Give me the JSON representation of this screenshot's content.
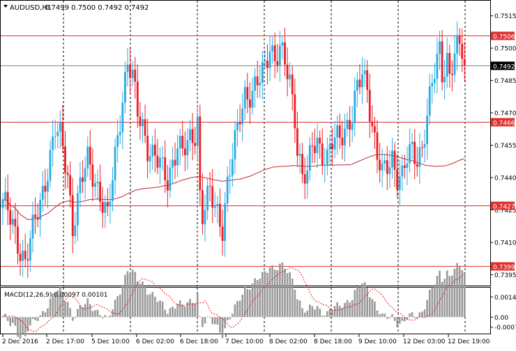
{
  "chart_data": [
    {
      "type": "candlestick",
      "title": "AUDUSD,H1",
      "ohlc_header": "0.7499 0.7500 0.7492 0.7492",
      "symbol": "AUDUSD",
      "timeframe": "H1",
      "ylim": [
        0.739,
        0.7522
      ],
      "y_ticks": [
        "0.7515",
        "0.7500",
        "0.7485",
        "0.7470",
        "0.7455",
        "0.7440",
        "0.7425",
        "0.7410",
        "0.7395"
      ],
      "x_tick_labels": [
        "2 Dec 2016",
        "2 Dec 17:00",
        "5 Dec 10:00",
        "6 Dec 02:00",
        "6 Dec 18:00",
        "7 Dec 10:00",
        "8 Dec 02:00",
        "8 Dec 18:00",
        "9 Dec 10:00",
        "12 Dec 03:00",
        "12 Dec 19:00"
      ],
      "current_price": "0.7492",
      "horizontal_levels": [
        {
          "label": "0.7506",
          "value": 0.7506
        },
        {
          "label": "0.7466",
          "value": 0.7466
        },
        {
          "label": "0.7427",
          "value": 0.7427
        },
        {
          "label": "0.7399",
          "value": 0.7399
        }
      ],
      "colors": {
        "bull": "#29abe2",
        "bear": "#ed1c24",
        "ma": "#c0282d",
        "level": "#e03030",
        "grid": "#000000"
      },
      "waypoints": [
        [
          0,
          0.743
        ],
        [
          3,
          0.742
        ],
        [
          6,
          0.741
        ],
        [
          9,
          0.7402
        ],
        [
          12,
          0.7415
        ],
        [
          15,
          0.7428
        ],
        [
          18,
          0.7445
        ],
        [
          21,
          0.7462
        ],
        [
          23,
          0.7458
        ],
        [
          26,
          0.7442
        ],
        [
          28,
          0.7418
        ],
        [
          31,
          0.7435
        ],
        [
          34,
          0.7448
        ],
        [
          37,
          0.744
        ],
        [
          40,
          0.7428
        ],
        [
          42,
          0.742
        ],
        [
          44,
          0.744
        ],
        [
          46,
          0.746
        ],
        [
          48,
          0.7478
        ],
        [
          50,
          0.7493
        ],
        [
          52,
          0.7485
        ],
        [
          54,
          0.747
        ],
        [
          56,
          0.7465
        ],
        [
          58,
          0.7455
        ],
        [
          60,
          0.745
        ],
        [
          63,
          0.7445
        ],
        [
          66,
          0.744
        ],
        [
          68,
          0.7448
        ],
        [
          70,
          0.7455
        ],
        [
          72,
          0.745
        ],
        [
          75,
          0.7458
        ],
        [
          77,
          0.7462
        ],
        [
          78,
          0.7468
        ],
        [
          79,
          0.7432
        ],
        [
          80,
          0.7422
        ],
        [
          83,
          0.7432
        ],
        [
          86,
          0.7425
        ],
        [
          88,
          0.7418
        ],
        [
          90,
          0.7436
        ],
        [
          93,
          0.7455
        ],
        [
          95,
          0.747
        ],
        [
          97,
          0.748
        ],
        [
          100,
          0.7478
        ],
        [
          103,
          0.7485
        ],
        [
          105,
          0.7492
        ],
        [
          107,
          0.7503
        ],
        [
          109,
          0.7495
        ],
        [
          111,
          0.7498
        ],
        [
          113,
          0.7492
        ],
        [
          115,
          0.7485
        ],
        [
          117,
          0.747
        ],
        [
          118,
          0.7455
        ],
        [
          120,
          0.744
        ],
        [
          122,
          0.744
        ],
        [
          124,
          0.7455
        ],
        [
          126,
          0.7458
        ],
        [
          128,
          0.7452
        ],
        [
          130,
          0.7448
        ],
        [
          132,
          0.7455
        ],
        [
          134,
          0.7458
        ],
        [
          136,
          0.7462
        ],
        [
          138,
          0.7465
        ],
        [
          140,
          0.7468
        ],
        [
          142,
          0.748
        ],
        [
          144,
          0.7488
        ],
        [
          146,
          0.7483
        ],
        [
          148,
          0.7465
        ],
        [
          150,
          0.745
        ],
        [
          152,
          0.744
        ],
        [
          154,
          0.7445
        ],
        [
          156,
          0.745
        ],
        [
          158,
          0.7442
        ],
        [
          160,
          0.744
        ],
        [
          162,
          0.7448
        ],
        [
          164,
          0.7452
        ],
        [
          166,
          0.745
        ],
        [
          168,
          0.7455
        ],
        [
          170,
          0.7468
        ],
        [
          172,
          0.7482
        ],
        [
          174,
          0.7494
        ],
        [
          175,
          0.75
        ],
        [
          176,
          0.749
        ],
        [
          178,
          0.7496
        ],
        [
          179,
          0.7487
        ],
        [
          181,
          0.7496
        ],
        [
          183,
          0.75
        ],
        [
          184,
          0.7499
        ],
        [
          185,
          0.7492
        ]
      ]
    },
    {
      "type": "histogram",
      "title": "MACD(12,26,9) 0.00097 0.00101",
      "y_ticks": [
        "0.0014",
        "0.00",
        "-0.0007"
      ],
      "ylim": [
        -0.0011,
        0.002
      ],
      "colors": {
        "bars": "#999999",
        "signal": "#ee1111"
      }
    }
  ]
}
